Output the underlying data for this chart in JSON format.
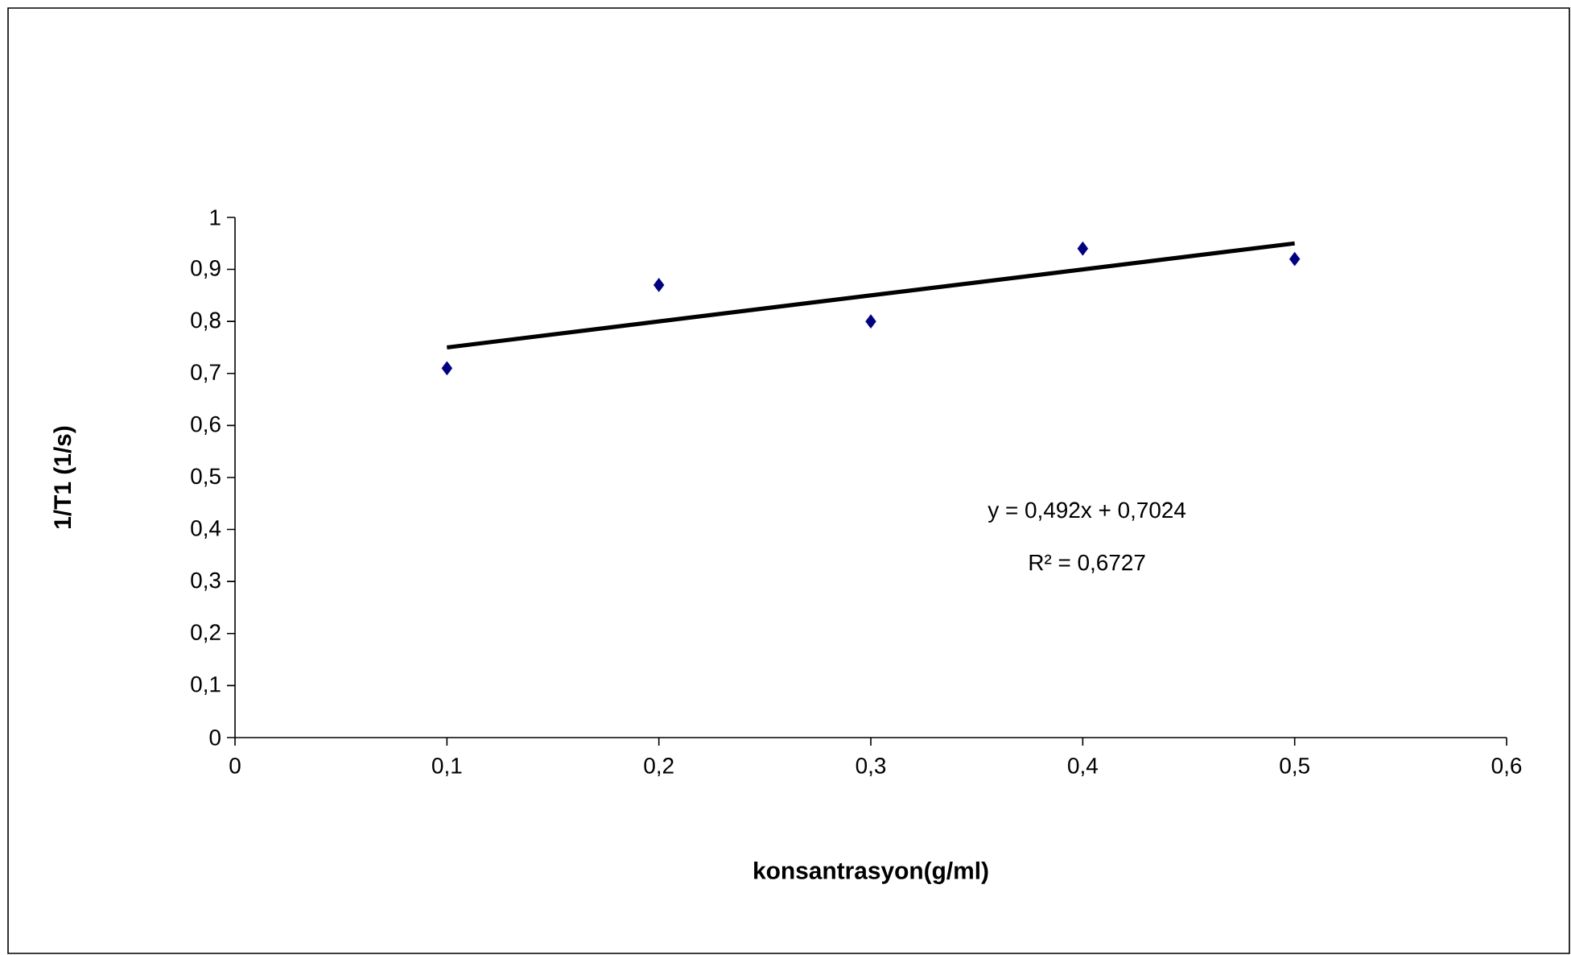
{
  "chart_data": {
    "type": "scatter",
    "xlabel": "konsantrasyon(g/ml)",
    "ylabel": "1/T1 (1/s)",
    "series": [
      {
        "marker": "diamond",
        "color": "#000080",
        "x": [
          0.1,
          0.2,
          0.3,
          0.4,
          0.5
        ],
        "values": [
          0.71,
          0.87,
          0.8,
          0.94,
          0.92
        ]
      },
      {
        "type": "line",
        "marker": "none",
        "color": "#000000",
        "x": [
          0.1,
          0.5
        ],
        "values": [
          0.75,
          0.95
        ]
      }
    ],
    "xlim": [
      0,
      0.6
    ],
    "ylim": [
      0,
      1
    ],
    "xticks": [
      0,
      {
        "value": 0.1,
        "label": "0,1"
      },
      {
        "value": 0.2,
        "label": "0,2"
      },
      {
        "value": 0.3,
        "label": "0,3"
      },
      {
        "value": 0.4,
        "label": "0,4"
      },
      {
        "value": 0.5,
        "label": "0,5"
      },
      {
        "value": 0.6,
        "label": "0,6"
      }
    ],
    "yticks": [
      0,
      {
        "value": 0.1,
        "label": "0,1"
      },
      {
        "value": 0.2,
        "label": "0,2"
      },
      {
        "value": 0.3,
        "label": "0,3"
      },
      {
        "value": 0.4,
        "label": "0,4"
      },
      {
        "value": 0.5,
        "label": "0,5"
      },
      {
        "value": 0.6,
        "label": "0,6"
      },
      {
        "value": 0.7,
        "label": "0,7"
      },
      {
        "value": 0.8,
        "label": "0,8"
      },
      {
        "value": 0.9,
        "label": "0,9"
      },
      1
    ],
    "annotations": [
      "y = 0,492x + 0,7024",
      "R² = 0,6727"
    ]
  }
}
